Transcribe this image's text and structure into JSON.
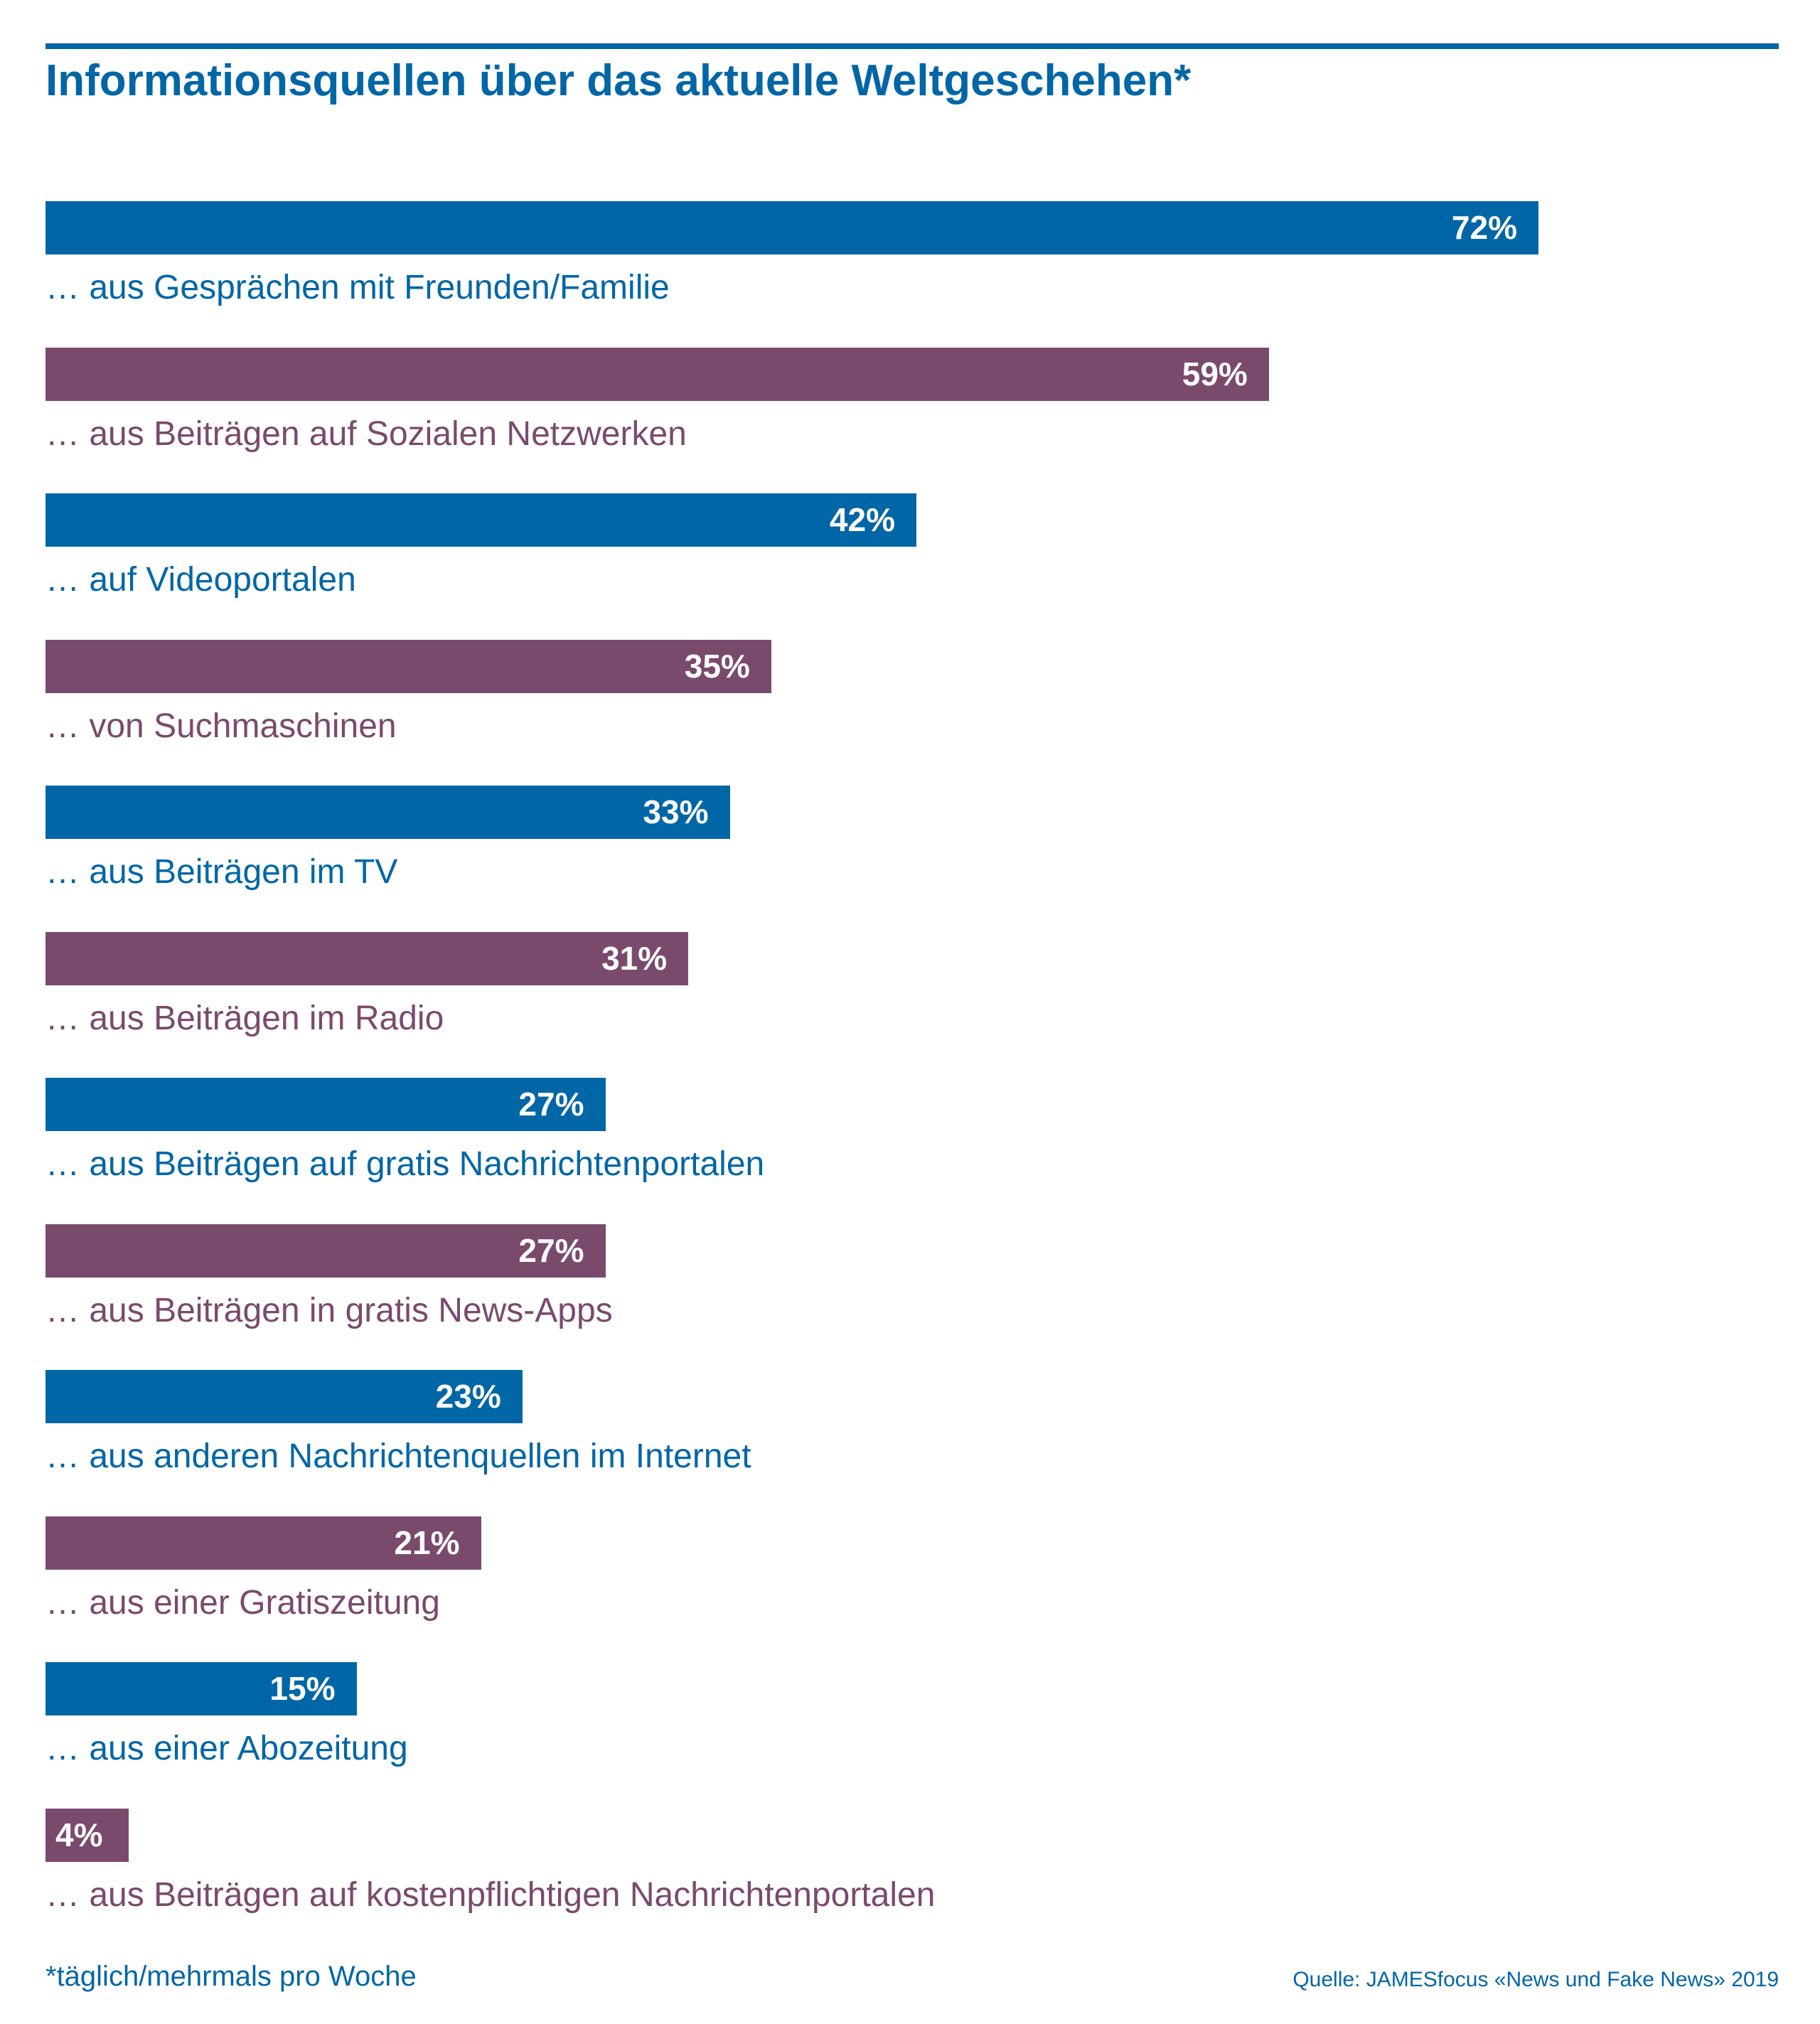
{
  "chart_data": {
    "type": "bar",
    "orientation": "horizontal",
    "title": "Informationsquellen über das aktuelle Weltgeschehen*",
    "categories": [
      "… aus Gesprächen mit Freunden/Familie",
      "… aus Beiträgen auf Sozialen Netzwerken",
      "… auf Videoportalen",
      "… von Suchmaschinen",
      "… aus Beiträgen im TV",
      "… aus Beiträgen im Radio",
      "… aus Beiträgen auf gratis Nachrichtenportalen",
      "… aus Beiträgen in gratis News-Apps",
      "… aus anderen Nachrichtenquellen im Internet",
      "… aus einer Gratiszeitung",
      "… aus einer Abozeitung",
      "… aus Beiträgen auf kostenpflichtigen Nachrichtenportalen"
    ],
    "values": [
      72,
      59,
      42,
      35,
      33,
      31,
      27,
      27,
      23,
      21,
      15,
      4
    ],
    "value_labels": [
      "72%",
      "59%",
      "42%",
      "35%",
      "33%",
      "31%",
      "27%",
      "27%",
      "23%",
      "21%",
      "15%",
      "4%"
    ],
    "unit": "%",
    "xlim": [
      0,
      100
    ],
    "grid": false,
    "legend": "none",
    "colors": [
      "#0066a6",
      "#7a4a6d"
    ]
  },
  "footnote": "*täglich/mehrmals pro Woche",
  "source": "Quelle: JAMESfocus «News und Fake News» 2019"
}
